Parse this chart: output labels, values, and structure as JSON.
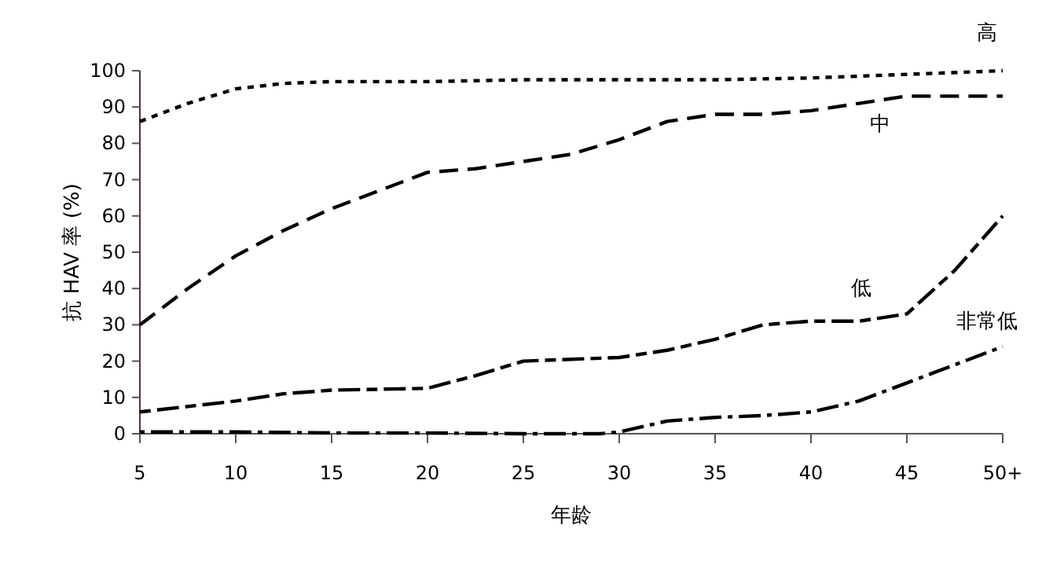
{
  "chart_data": {
    "type": "line",
    "xlabel": "年龄",
    "ylabel": "抗 HAV 率 (%)",
    "xlim": [
      5,
      50
    ],
    "xticks": [
      5,
      10,
      15,
      20,
      25,
      30,
      35,
      40,
      45,
      {
        "value": 50,
        "label": "50+"
      }
    ],
    "ylim": [
      0,
      100
    ],
    "yticks": [
      0,
      10,
      20,
      30,
      40,
      50,
      60,
      70,
      80,
      90,
      100
    ],
    "grid": false,
    "legend": false,
    "marker": "none",
    "series": [
      {
        "name": "高",
        "color": "#000000",
        "line_style": "dotted",
        "x": [
          5,
          7.5,
          10,
          12.5,
          15,
          20,
          25,
          30,
          35,
          40,
          45,
          50
        ],
        "values": [
          86,
          91,
          95,
          96.5,
          97,
          97,
          97.5,
          97.5,
          97.5,
          98,
          99,
          100
        ]
      },
      {
        "name": "中",
        "color": "#000000",
        "line_style": "dashed",
        "x": [
          5,
          7.5,
          10,
          12.5,
          15,
          17.5,
          20,
          22.5,
          25,
          27.5,
          30,
          32.5,
          35,
          37.5,
          40,
          42.5,
          45,
          50
        ],
        "values": [
          30,
          40,
          49,
          56,
          62,
          67,
          72,
          73,
          75,
          77,
          81,
          86,
          88,
          88,
          89,
          91,
          93,
          93
        ]
      },
      {
        "name": "低",
        "color": "#000000",
        "line_style": "dashed",
        "x": [
          5,
          10,
          12.5,
          15,
          20,
          22.5,
          25,
          30,
          32.5,
          35,
          37.5,
          40,
          42.5,
          45,
          47.5,
          50
        ],
        "values": [
          6,
          9,
          11,
          12,
          12.5,
          16,
          20,
          21,
          23,
          26,
          30,
          31,
          31,
          33,
          45,
          60
        ]
      },
      {
        "name": "非常低",
        "color": "#000000",
        "line_style": "dashed",
        "x": [
          5,
          10,
          15,
          20,
          25,
          29,
          30,
          32.5,
          35,
          37.5,
          40,
          42.5,
          45,
          47.5,
          50
        ],
        "values": [
          0.5,
          0.5,
          0.2,
          0.2,
          0,
          0,
          0.5,
          3.5,
          4.5,
          5,
          6,
          9,
          14,
          19,
          24
        ]
      }
    ]
  }
}
